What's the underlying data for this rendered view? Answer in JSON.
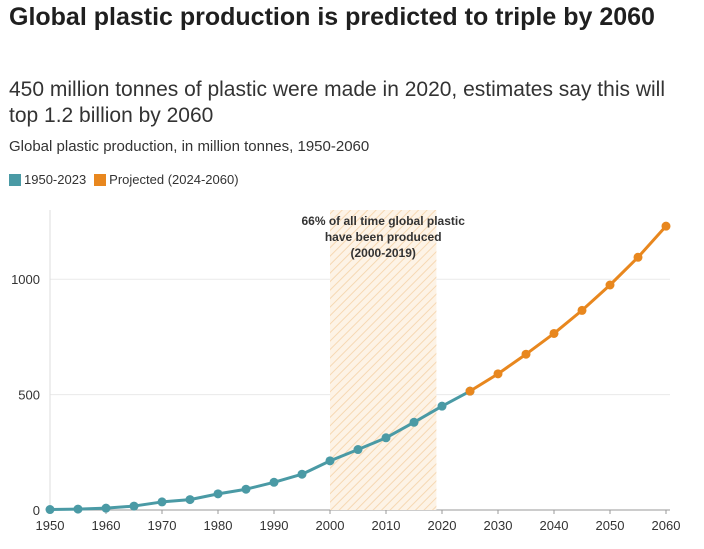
{
  "header": {
    "title": "Global plastic production is predicted to triple by 2060",
    "subtitle": "450 million tonnes of plastic were made in 2020, estimates say this will top 1.2 billion by 2060",
    "caption": "Global plastic production, in million tonnes, 1950-2060"
  },
  "legend": [
    {
      "label": "1950-2023",
      "color": "#4a9aa5"
    },
    {
      "label": "Projected (2024-2060)",
      "color": "#e8871e"
    }
  ],
  "annotation": {
    "lines": [
      "66% of all time global plastic",
      "have been produced",
      "(2000-2019)"
    ],
    "start": 2000,
    "end": 2019
  },
  "chart_data": {
    "type": "line",
    "title": "Global plastic production is predicted to triple by 2060",
    "xlabel": "",
    "ylabel": "",
    "xlim": [
      1950,
      2060
    ],
    "ylim": [
      0,
      1300
    ],
    "x_ticks": [
      1950,
      1960,
      1970,
      1980,
      1990,
      2000,
      2010,
      2020,
      2030,
      2040,
      2050,
      2060
    ],
    "y_ticks": [
      0,
      500,
      1000
    ],
    "grid": true,
    "legend_position": "top-left",
    "series": [
      {
        "name": "1950-2023",
        "color": "#4a9aa5",
        "x": [
          1950,
          1955,
          1960,
          1965,
          1970,
          1975,
          1980,
          1985,
          1990,
          1995,
          2000,
          2005,
          2010,
          2015,
          2020,
          2025
        ],
        "values": [
          2,
          4,
          8,
          17,
          35,
          45,
          70,
          90,
          120,
          155,
          213,
          262,
          313,
          380,
          450,
          515
        ]
      },
      {
        "name": "Projected (2024-2060)",
        "color": "#e8871e",
        "x": [
          2025,
          2030,
          2035,
          2040,
          2045,
          2050,
          2055,
          2060
        ],
        "values": [
          515,
          590,
          675,
          765,
          865,
          975,
          1095,
          1230
        ]
      }
    ]
  }
}
